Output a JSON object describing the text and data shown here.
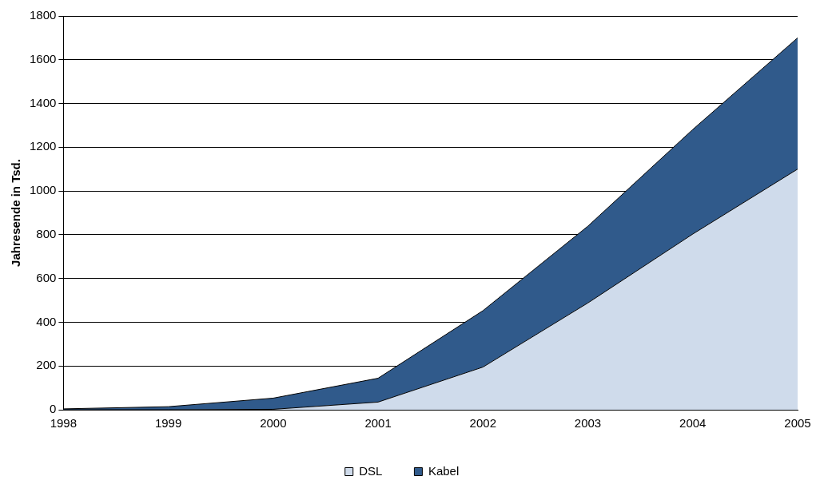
{
  "chart_data": {
    "type": "area",
    "stacked": true,
    "ylabel": "Jahresende in Tsd.",
    "categories": [
      "1998",
      "1999",
      "2000",
      "2001",
      "2002",
      "2003",
      "2004",
      "2005"
    ],
    "series": [
      {
        "name": "DSL",
        "color": "#cfdbeb",
        "values": [
          0,
          0,
          2,
          35,
          195,
          488,
          803,
          1100
        ]
      },
      {
        "name": "Kabel",
        "color": "#305a8b",
        "values": [
          4,
          14,
          51,
          109,
          258,
          351,
          478,
          600
        ]
      }
    ],
    "ylim": [
      0,
      1800
    ],
    "yticks": [
      0,
      200,
      400,
      600,
      800,
      1000,
      1200,
      1400,
      1600,
      1800
    ],
    "grid": "y",
    "legend": "bottom",
    "marker": "none"
  }
}
